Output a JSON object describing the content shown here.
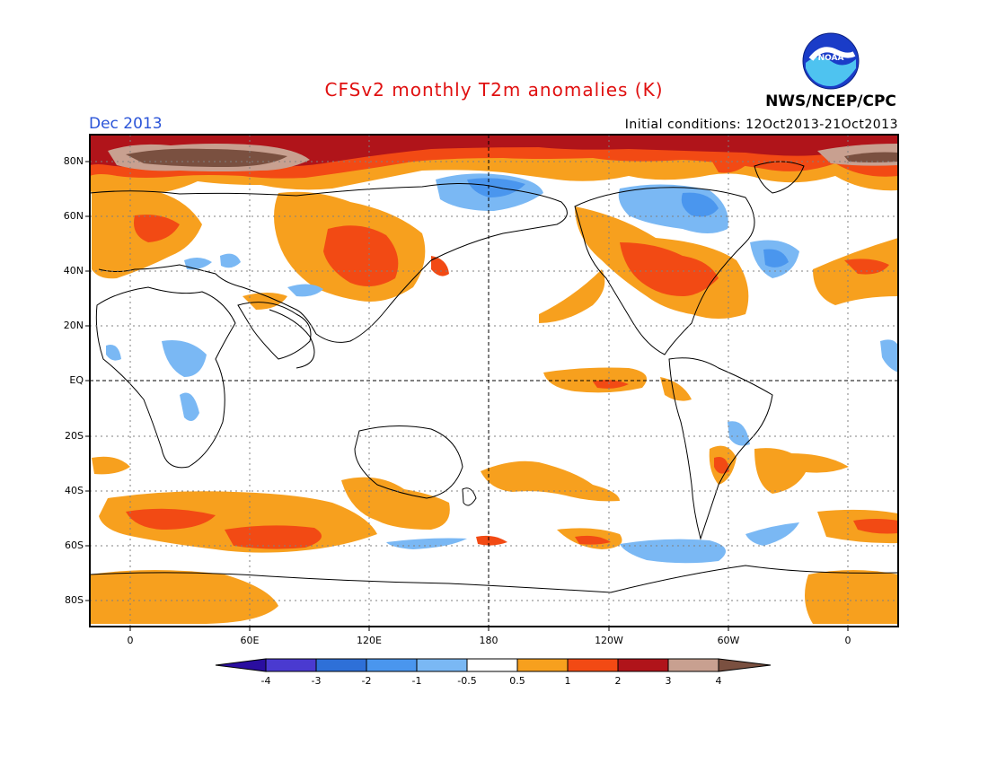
{
  "title": "CFSv2 monthly T2m anomalies (K)",
  "month": "Dec 2013",
  "initial_conditions": "Initial conditions: 12Oct2013-21Oct2013",
  "agency": "NWS/NCEP/CPC",
  "logo_text": "NOAA",
  "lat_labels": [
    "80N",
    "60N",
    "40N",
    "20N",
    "EQ",
    "20S",
    "40S",
    "60S",
    "80S"
  ],
  "lon_labels": [
    "0",
    "60E",
    "120E",
    "180",
    "120W",
    "60W",
    "0"
  ],
  "colorbar": {
    "labels": [
      "-4",
      "-3",
      "-2",
      "-1",
      "-0.5",
      "0.5",
      "1",
      "2",
      "3",
      "4"
    ],
    "colors": [
      "#2a0ea0",
      "#4a3ad0",
      "#2e70d8",
      "#4a96ee",
      "#7ab8f4",
      "#ffffff",
      "#f7a01e",
      "#f24a14",
      "#b0141a",
      "#c8a090",
      "#7a5040"
    ]
  },
  "anomaly_palette": {
    "cold_strong": "#2e70d8",
    "cold_moderate": "#4a96ee",
    "cold_weak": "#7ab8f4",
    "warm_weak": "#f7a01e",
    "warm_moderate": "#f24a14",
    "warm_strong": "#b0141a",
    "warm_extreme": "#c8a090",
    "warm_max": "#7a5040"
  }
}
